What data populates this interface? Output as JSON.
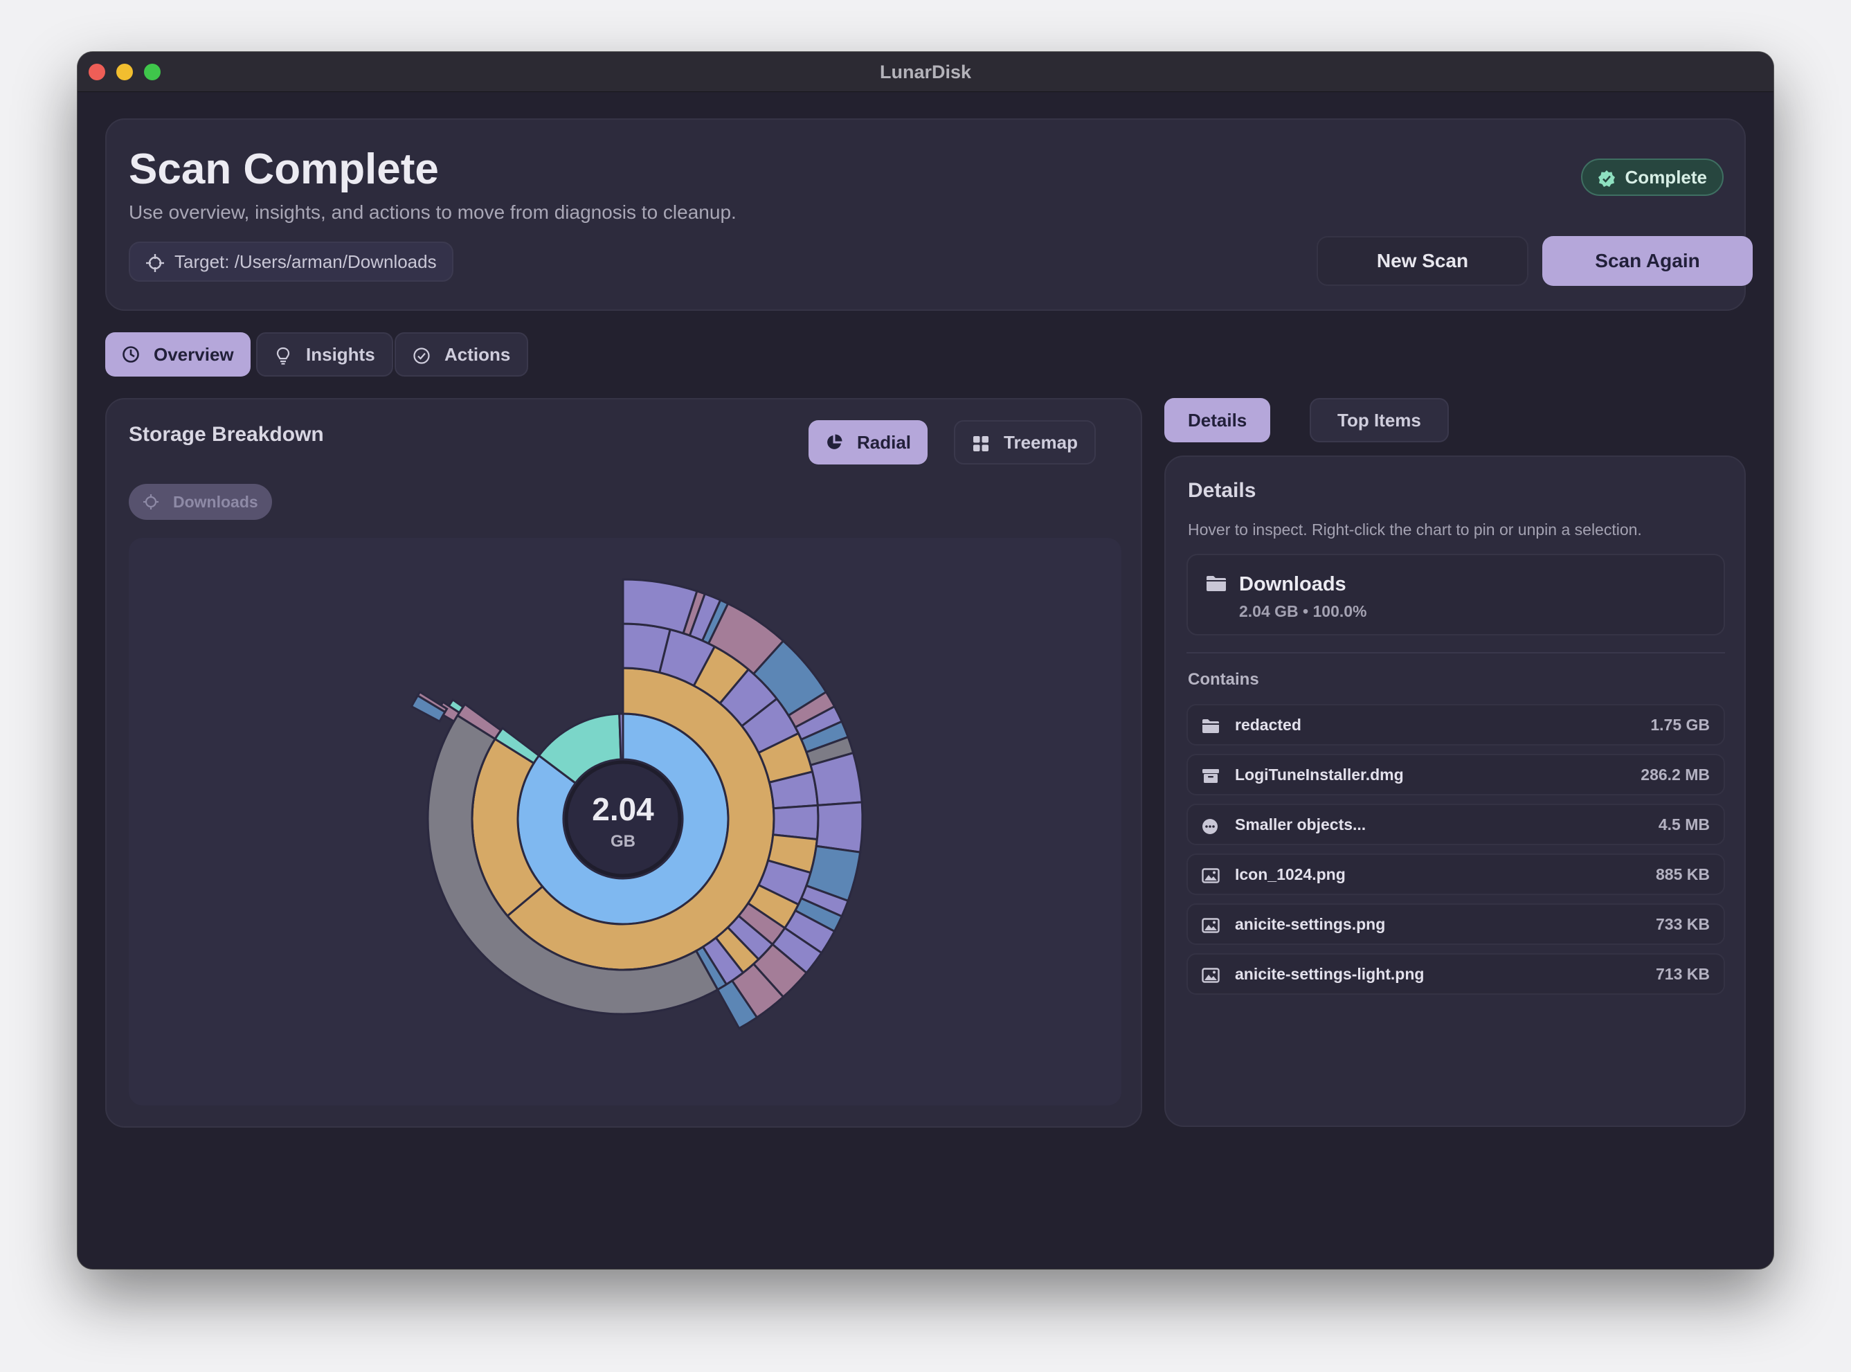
{
  "window": {
    "title": "LunarDisk"
  },
  "header": {
    "title": "Scan Complete",
    "subtitle": "Use overview, insights, and actions to move from diagnosis to cleanup.",
    "target_label": "Target: /Users/arman/Downloads",
    "status_badge": "Complete",
    "new_scan_label": "New Scan",
    "scan_again_label": "Scan Again"
  },
  "main_tabs": [
    {
      "label": "Overview",
      "icon": "pie-clock-icon",
      "active": true
    },
    {
      "label": "Insights",
      "icon": "lightbulb-icon",
      "active": false
    },
    {
      "label": "Actions",
      "icon": "check-circle-icon",
      "active": false
    }
  ],
  "breakdown": {
    "title": "Storage Breakdown",
    "view_toggle": [
      {
        "label": "Radial",
        "icon": "pie-chart-icon",
        "active": true
      },
      {
        "label": "Treemap",
        "icon": "grid-icon",
        "active": false
      }
    ],
    "breadcrumb": "Downloads",
    "center_value": "2.04",
    "center_unit": "GB"
  },
  "side_tabs": [
    {
      "label": "Details",
      "active": true
    },
    {
      "label": "Top Items",
      "active": false
    }
  ],
  "details": {
    "title": "Details",
    "hint": "Hover to inspect. Right-click the chart to pin or unpin a selection.",
    "selected": {
      "name": "Downloads",
      "meta": "2.04 GB • 100.0%",
      "icon": "folder-icon"
    },
    "contains_label": "Contains",
    "items": [
      {
        "name": "redacted",
        "size": "1.75 GB",
        "icon": "folder-icon"
      },
      {
        "name": "LogiTuneInstaller.dmg",
        "size": "286.2 MB",
        "icon": "archive-icon"
      },
      {
        "name": "Smaller objects...",
        "size": "4.5 MB",
        "icon": "ellipsis-icon"
      },
      {
        "name": "Icon_1024.png",
        "size": "885 KB",
        "icon": "image-icon"
      },
      {
        "name": "anicite-settings.png",
        "size": "733 KB",
        "icon": "image-icon"
      },
      {
        "name": "anicite-settings-light.png",
        "size": "713 KB",
        "icon": "image-icon"
      }
    ]
  },
  "colors": {
    "accent": "#b5a7da",
    "blue": "#7fb8f0",
    "teal": "#7bd6c9",
    "gold": "#d6a966",
    "gray": "#7d7c86",
    "purple": "#8d85c9",
    "steel": "#5c86b5",
    "rose": "#a47d98"
  }
}
